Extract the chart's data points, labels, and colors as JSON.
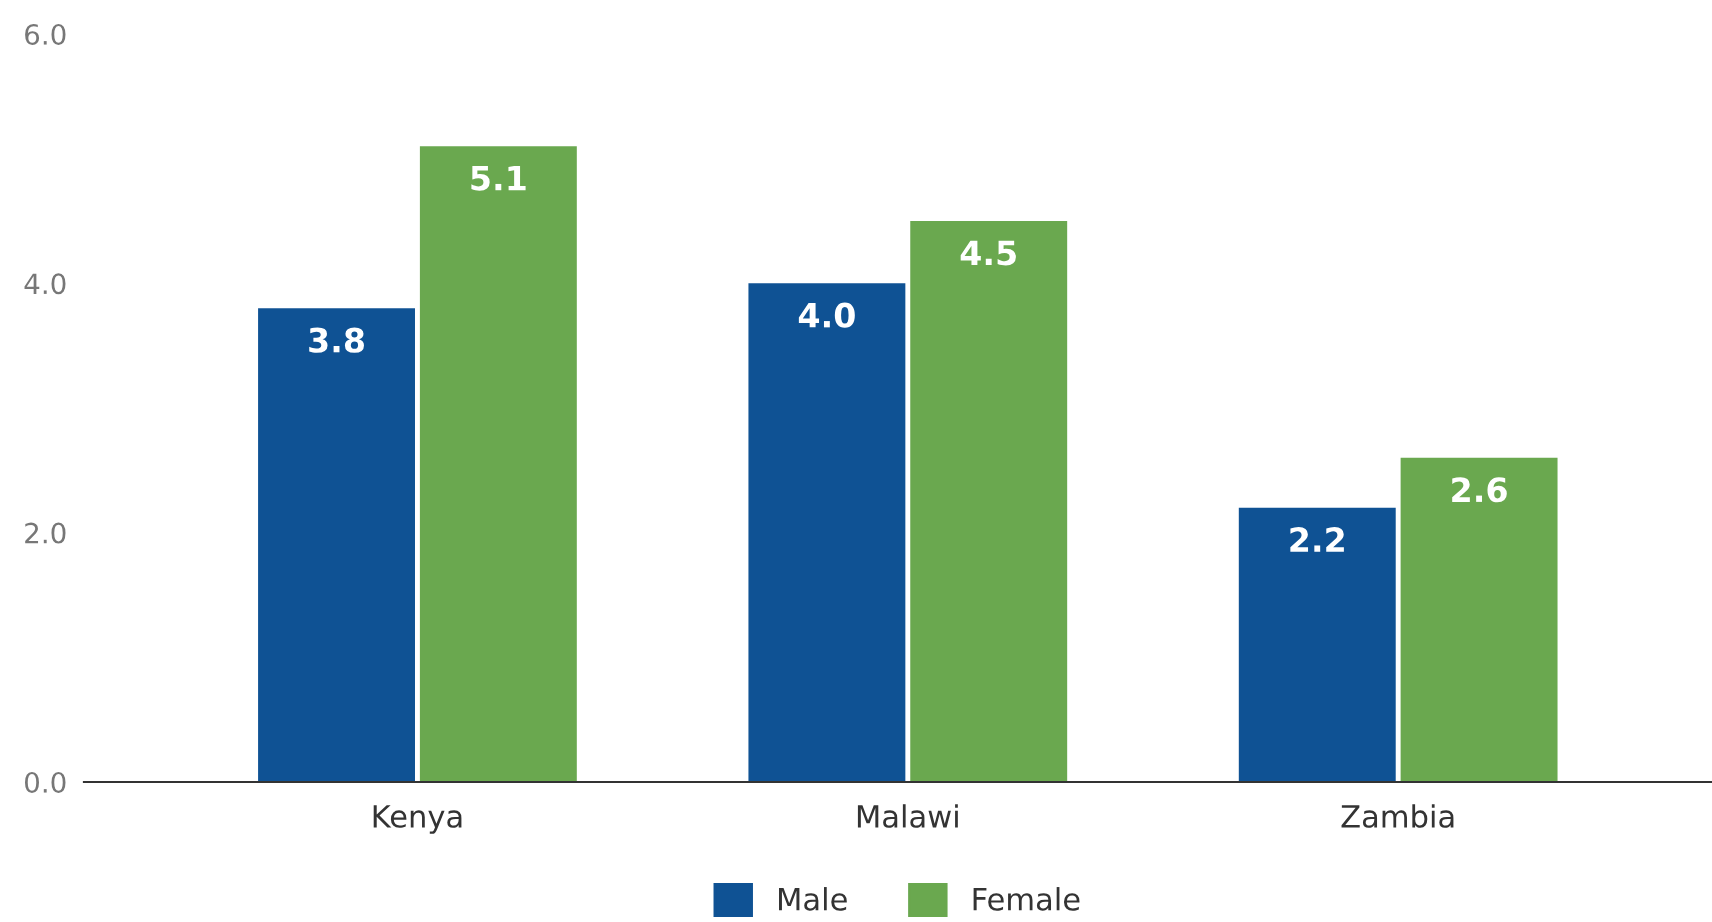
{
  "chart_data": {
    "type": "bar",
    "categories": [
      "Kenya",
      "Malawi",
      "Zambia"
    ],
    "series": [
      {
        "name": "Male",
        "color": "#0f5294",
        "values": [
          3.8,
          4.0,
          2.2
        ],
        "value_labels": [
          "3.8",
          "4.0",
          "2.2"
        ]
      },
      {
        "name": "Female",
        "color": "#6aa84f",
        "values": [
          5.1,
          4.5,
          2.6
        ],
        "value_labels": [
          "5.1",
          "4.5",
          "2.6"
        ]
      }
    ],
    "ylim": [
      0,
      6
    ],
    "yticks": [
      {
        "value": 0,
        "label": "0.0"
      },
      {
        "value": 2,
        "label": "2.0"
      },
      {
        "value": 4,
        "label": "4.0"
      },
      {
        "value": 6,
        "label": "6.0"
      }
    ],
    "legend": "bottom",
    "grid": false
  }
}
